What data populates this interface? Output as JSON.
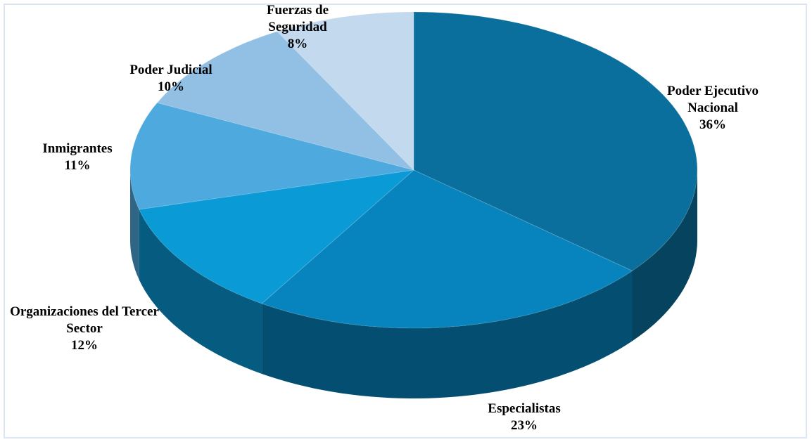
{
  "chart_data": {
    "type": "pie",
    "categories": [
      "Poder Ejecutivo Nacional",
      "Especialistas",
      "Organizaciones del Tercer Sector",
      "Inmigrantes",
      "Poder Judicial",
      "Fuerzas de Seguridad"
    ],
    "values": [
      36,
      23,
      12,
      11,
      10,
      8
    ],
    "value_labels": [
      "36%",
      "23%",
      "12%",
      "11%",
      "10%",
      "8%"
    ],
    "colors": [
      "#0a6f9c",
      "#0784bd",
      "#0a9ad6",
      "#4ea9de",
      "#91c0e4",
      "#c3d9ee"
    ]
  }
}
